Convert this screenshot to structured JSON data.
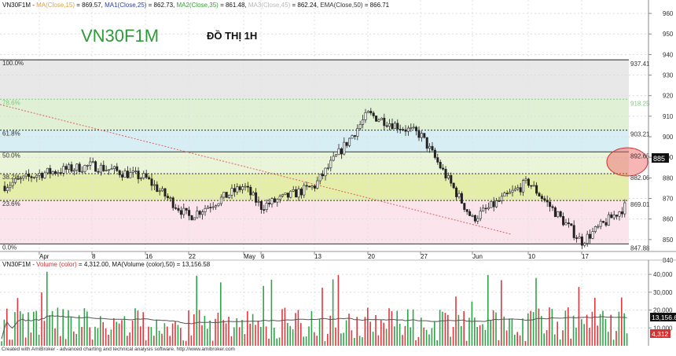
{
  "header": {
    "symbol": "VN30F1M",
    "sep": " - ",
    "items": [
      {
        "label": "MA(Close,15)",
        "value": " = 869.57,",
        "color": "#e0a040"
      },
      {
        "label": "MA1(Close,25)",
        "value": " = 862.73,",
        "color": "#2a3f9e"
      },
      {
        "label": "MA2(Close,35)",
        "value": " = 861.48,",
        "color": "#3a9a3a"
      },
      {
        "label": "MA3(Close,45)",
        "value": " = 862.24,",
        "color": "#b8b8b8"
      },
      {
        "label": "EMA(Close,50)",
        "value": " = 866.71",
        "color": "#333333"
      }
    ]
  },
  "watermark": {
    "symbol": "VN30F1M",
    "subtitle": "ĐỒ THỊ 1H"
  },
  "price_axis": {
    "min": 840,
    "max": 965,
    "ticks": [
      "840",
      "850",
      "860",
      "870",
      "880",
      "890",
      "900",
      "910",
      "920",
      "930",
      "940",
      "950",
      "960"
    ],
    "last_price": "885"
  },
  "fib_levels": [
    {
      "pct": "100.0%",
      "price": "937.41",
      "value": 937.41,
      "color": "#222222"
    },
    {
      "pct": "78.6%",
      "price": "918.25",
      "value": 918.25,
      "color": "#7ec87e"
    },
    {
      "pct": "61.8%",
      "price": "903.21",
      "value": 903.21,
      "color": "#333333"
    },
    {
      "pct": "50.0%",
      "price": "892.65",
      "value": 892.65,
      "color": "#333333"
    },
    {
      "pct": "38.2%",
      "price": "882.06",
      "value": 882.06,
      "color": "#333333"
    },
    {
      "pct": "23.6%",
      "price": "869.01",
      "value": 869.01,
      "color": "#333333"
    },
    {
      "pct": "0.0%",
      "price": "847.88",
      "value": 847.88,
      "color": "#333333"
    }
  ],
  "fib_zones": [
    {
      "from": 918.25,
      "to": 937.41,
      "color": "#e8e8e8"
    },
    {
      "from": 903.21,
      "to": 918.25,
      "color": "#dff0d4"
    },
    {
      "from": 892.65,
      "to": 903.21,
      "color": "#d8eef5"
    },
    {
      "from": 882.06,
      "to": 892.65,
      "color": "#eaf4d8"
    },
    {
      "from": 869.01,
      "to": 882.06,
      "color": "#e4eea8"
    },
    {
      "from": 847.88,
      "to": 869.01,
      "color": "#fbe4ec"
    }
  ],
  "date_axis": [
    "Apr",
    "8",
    "16",
    "22",
    "May",
    "6",
    "13",
    "20",
    "27",
    "Jun",
    "10",
    "17"
  ],
  "chart_data": {
    "type": "candlestick",
    "title": "VN30F1M",
    "ylim": [
      840,
      965
    ],
    "key_points": [
      {
        "date": "Apr",
        "close": 882
      },
      {
        "date": "8",
        "close": 886
      },
      {
        "date": "16",
        "close": 880
      },
      {
        "date": "22",
        "close": 861
      },
      {
        "date": "May",
        "close": 876
      },
      {
        "date": "6",
        "close": 866
      },
      {
        "date": "13",
        "close": 876
      },
      {
        "date": "20",
        "close": 911
      },
      {
        "date": "27",
        "close": 901
      },
      {
        "date": "Jun",
        "close": 860
      },
      {
        "date": "10",
        "close": 878
      },
      {
        "date": "17",
        "close": 849
      },
      {
        "date": "",
        "close": 866
      }
    ]
  },
  "volume": {
    "header_prefix": "VN30F1M - ",
    "header_label": "Volume (color)",
    "header_value": " = 4,312.00, ",
    "header_ma_label": "MA(Volume (color),50)",
    "header_ma_value": " = 13,156.58",
    "ticks": [
      "40,000",
      "30,000",
      "20,000",
      "10,000"
    ],
    "ma_value": "13,156.6",
    "last_value": "4,312",
    "chart_data": {
      "type": "bar",
      "ylim": [
        0,
        44000
      ],
      "last_volume": 4312,
      "ma50": 13156.58
    }
  },
  "footer": "Created with AmiBroker - advanced charting and technical analysis software. http://www.amibroker.com"
}
